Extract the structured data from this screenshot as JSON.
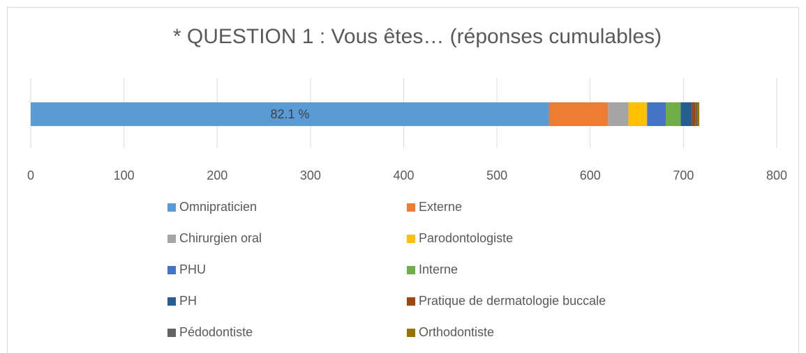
{
  "chart_data": {
    "type": "stacked-bar-horizontal",
    "title": "* QUESTION 1 : Vous êtes… (réponses cumulables)",
    "annotation": "82.1 %",
    "series": [
      {
        "name": "Omnipraticien",
        "color": "#5b9bd5",
        "values": [
          556
        ]
      },
      {
        "name": "Externe",
        "color": "#ed7d31",
        "values": [
          63
        ]
      },
      {
        "name": "Chirurgien oral",
        "color": "#a5a5a5",
        "values": [
          22
        ]
      },
      {
        "name": "Parodontologiste",
        "color": "#ffc000",
        "values": [
          20
        ]
      },
      {
        "name": "PHU",
        "color": "#4472c4",
        "values": [
          20
        ]
      },
      {
        "name": "Interne",
        "color": "#70ad47",
        "values": [
          16
        ]
      },
      {
        "name": "PH",
        "color": "#255e91",
        "values": [
          12
        ]
      },
      {
        "name": "Pratique de dermatologie buccale",
        "color": "#9e480e",
        "values": [
          4
        ]
      },
      {
        "name": "Pédodontiste",
        "color": "#636363",
        "values": [
          2
        ]
      },
      {
        "name": "Orthodontiste",
        "color": "#997300",
        "values": [
          2
        ]
      }
    ],
    "xlim": [
      0,
      800
    ],
    "xticks": [
      0,
      100,
      200,
      300,
      400,
      500,
      600,
      700,
      800
    ],
    "grid": true
  }
}
